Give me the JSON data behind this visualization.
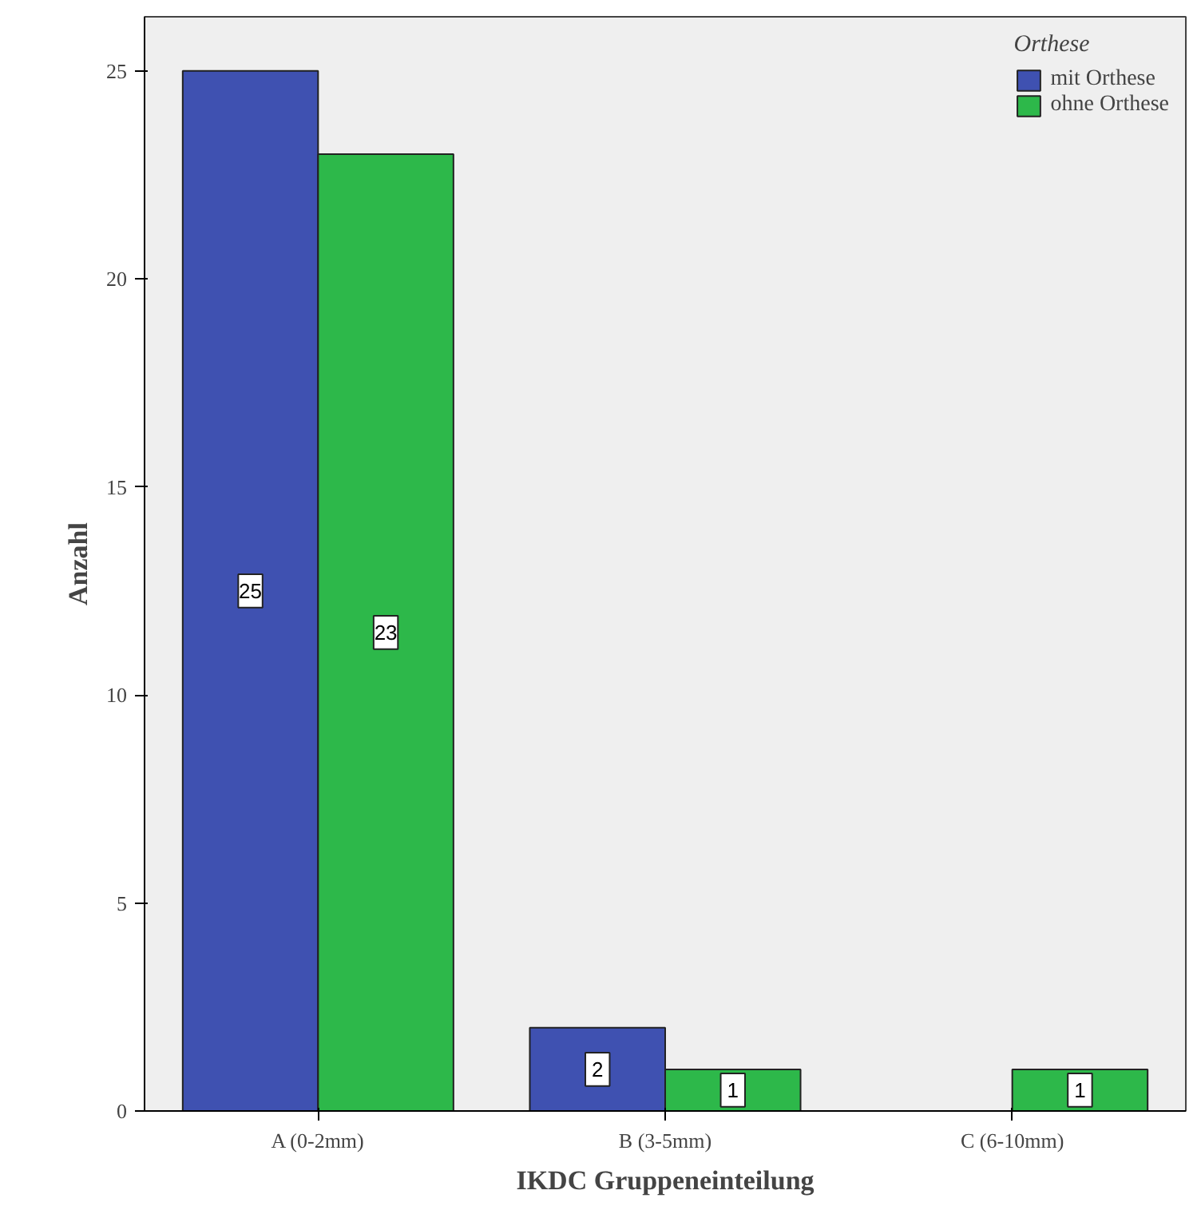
{
  "chart_data": {
    "type": "bar",
    "xlabel": "IKDC Gruppeneinteilung",
    "ylabel": "Anzahl",
    "legend_title": "Orthese",
    "categories": [
      "A (0-2mm)",
      "B (3-5mm)",
      "C (6-10mm)"
    ],
    "series": [
      {
        "name": "mit Orthese",
        "color": "#3f51b1",
        "values": [
          25,
          2,
          null
        ]
      },
      {
        "name": "ohne Orthese",
        "color": "#2db84a",
        "values": [
          23,
          1,
          1
        ]
      }
    ],
    "ylim": [
      0,
      26.3
    ],
    "yticks": [
      0,
      5,
      10,
      15,
      20,
      25
    ],
    "grid": false,
    "legend": "top right",
    "data_labels": true
  }
}
